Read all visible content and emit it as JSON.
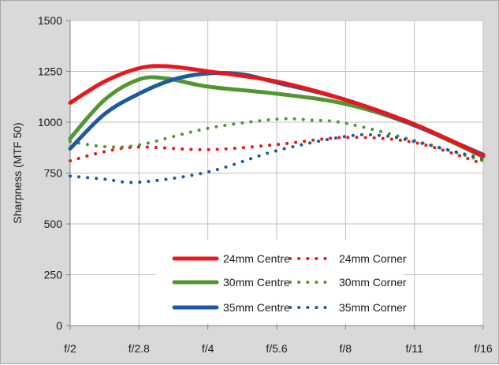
{
  "chart_data": {
    "type": "line",
    "title": "",
    "xlabel": "",
    "ylabel": "Sharpness  (MTF 50)",
    "x_categories": [
      "f/2",
      "f/2.8",
      "f/4",
      "f/5.6",
      "f/8",
      "f/11",
      "f/16"
    ],
    "yticks": [
      "0",
      "250",
      "500",
      "750",
      "1000",
      "1250",
      "1500"
    ],
    "ylim": [
      0,
      1500
    ],
    "grid": true,
    "legend_position": "bottom-center",
    "series": [
      {
        "name": "24mm Centre",
        "style": "solid",
        "color": "#e8171d",
        "points": [
          [
            0,
            1095
          ],
          [
            0.5,
            1200
          ],
          [
            1,
            1265
          ],
          [
            1.4,
            1275
          ],
          [
            2,
            1250
          ],
          [
            3,
            1200
          ],
          [
            4,
            1110
          ],
          [
            5,
            990
          ],
          [
            6,
            835
          ]
        ]
      },
      {
        "name": "30mm Centre",
        "style": "solid",
        "color": "#53962f",
        "points": [
          [
            0,
            920
          ],
          [
            0.5,
            1110
          ],
          [
            1,
            1210
          ],
          [
            1.4,
            1215
          ],
          [
            2,
            1175
          ],
          [
            3,
            1140
          ],
          [
            4,
            1090
          ],
          [
            5,
            985
          ],
          [
            6,
            830
          ]
        ]
      },
      {
        "name": "35mm Centre",
        "style": "solid",
        "color": "#1f5aa0",
        "points": [
          [
            0,
            870
          ],
          [
            0.5,
            1040
          ],
          [
            1,
            1140
          ],
          [
            1.5,
            1210
          ],
          [
            2,
            1240
          ],
          [
            2.5,
            1235
          ],
          [
            3,
            1195
          ],
          [
            4,
            1110
          ],
          [
            5,
            985
          ],
          [
            6,
            840
          ]
        ]
      },
      {
        "name": "24mm Corner",
        "style": "dotted",
        "color": "#e8171d",
        "points": [
          [
            0,
            810
          ],
          [
            0.5,
            855
          ],
          [
            1,
            878
          ],
          [
            2,
            865
          ],
          [
            3,
            890
          ],
          [
            4,
            925
          ],
          [
            5,
            900
          ],
          [
            6,
            795
          ]
        ]
      },
      {
        "name": "30mm Corner",
        "style": "dotted",
        "color": "#53962f",
        "points": [
          [
            0,
            905
          ],
          [
            0.5,
            880
          ],
          [
            1,
            888
          ],
          [
            2,
            970
          ],
          [
            3,
            1015
          ],
          [
            3.5,
            1010
          ],
          [
            4,
            995
          ],
          [
            5,
            910
          ],
          [
            6,
            810
          ]
        ]
      },
      {
        "name": "35mm Corner",
        "style": "dotted",
        "color": "#1f5aa0",
        "points": [
          [
            0,
            735
          ],
          [
            0.5,
            720
          ],
          [
            1,
            705
          ],
          [
            2,
            755
          ],
          [
            3,
            860
          ],
          [
            4,
            930
          ],
          [
            4.5,
            935
          ],
          [
            5,
            905
          ],
          [
            6,
            820
          ]
        ]
      }
    ],
    "colors": {
      "frame_bg": "#d9d9d9",
      "plot_bg": "#ffffff",
      "grid": "#bfbfbf",
      "axis": "#7f7f7f"
    }
  }
}
